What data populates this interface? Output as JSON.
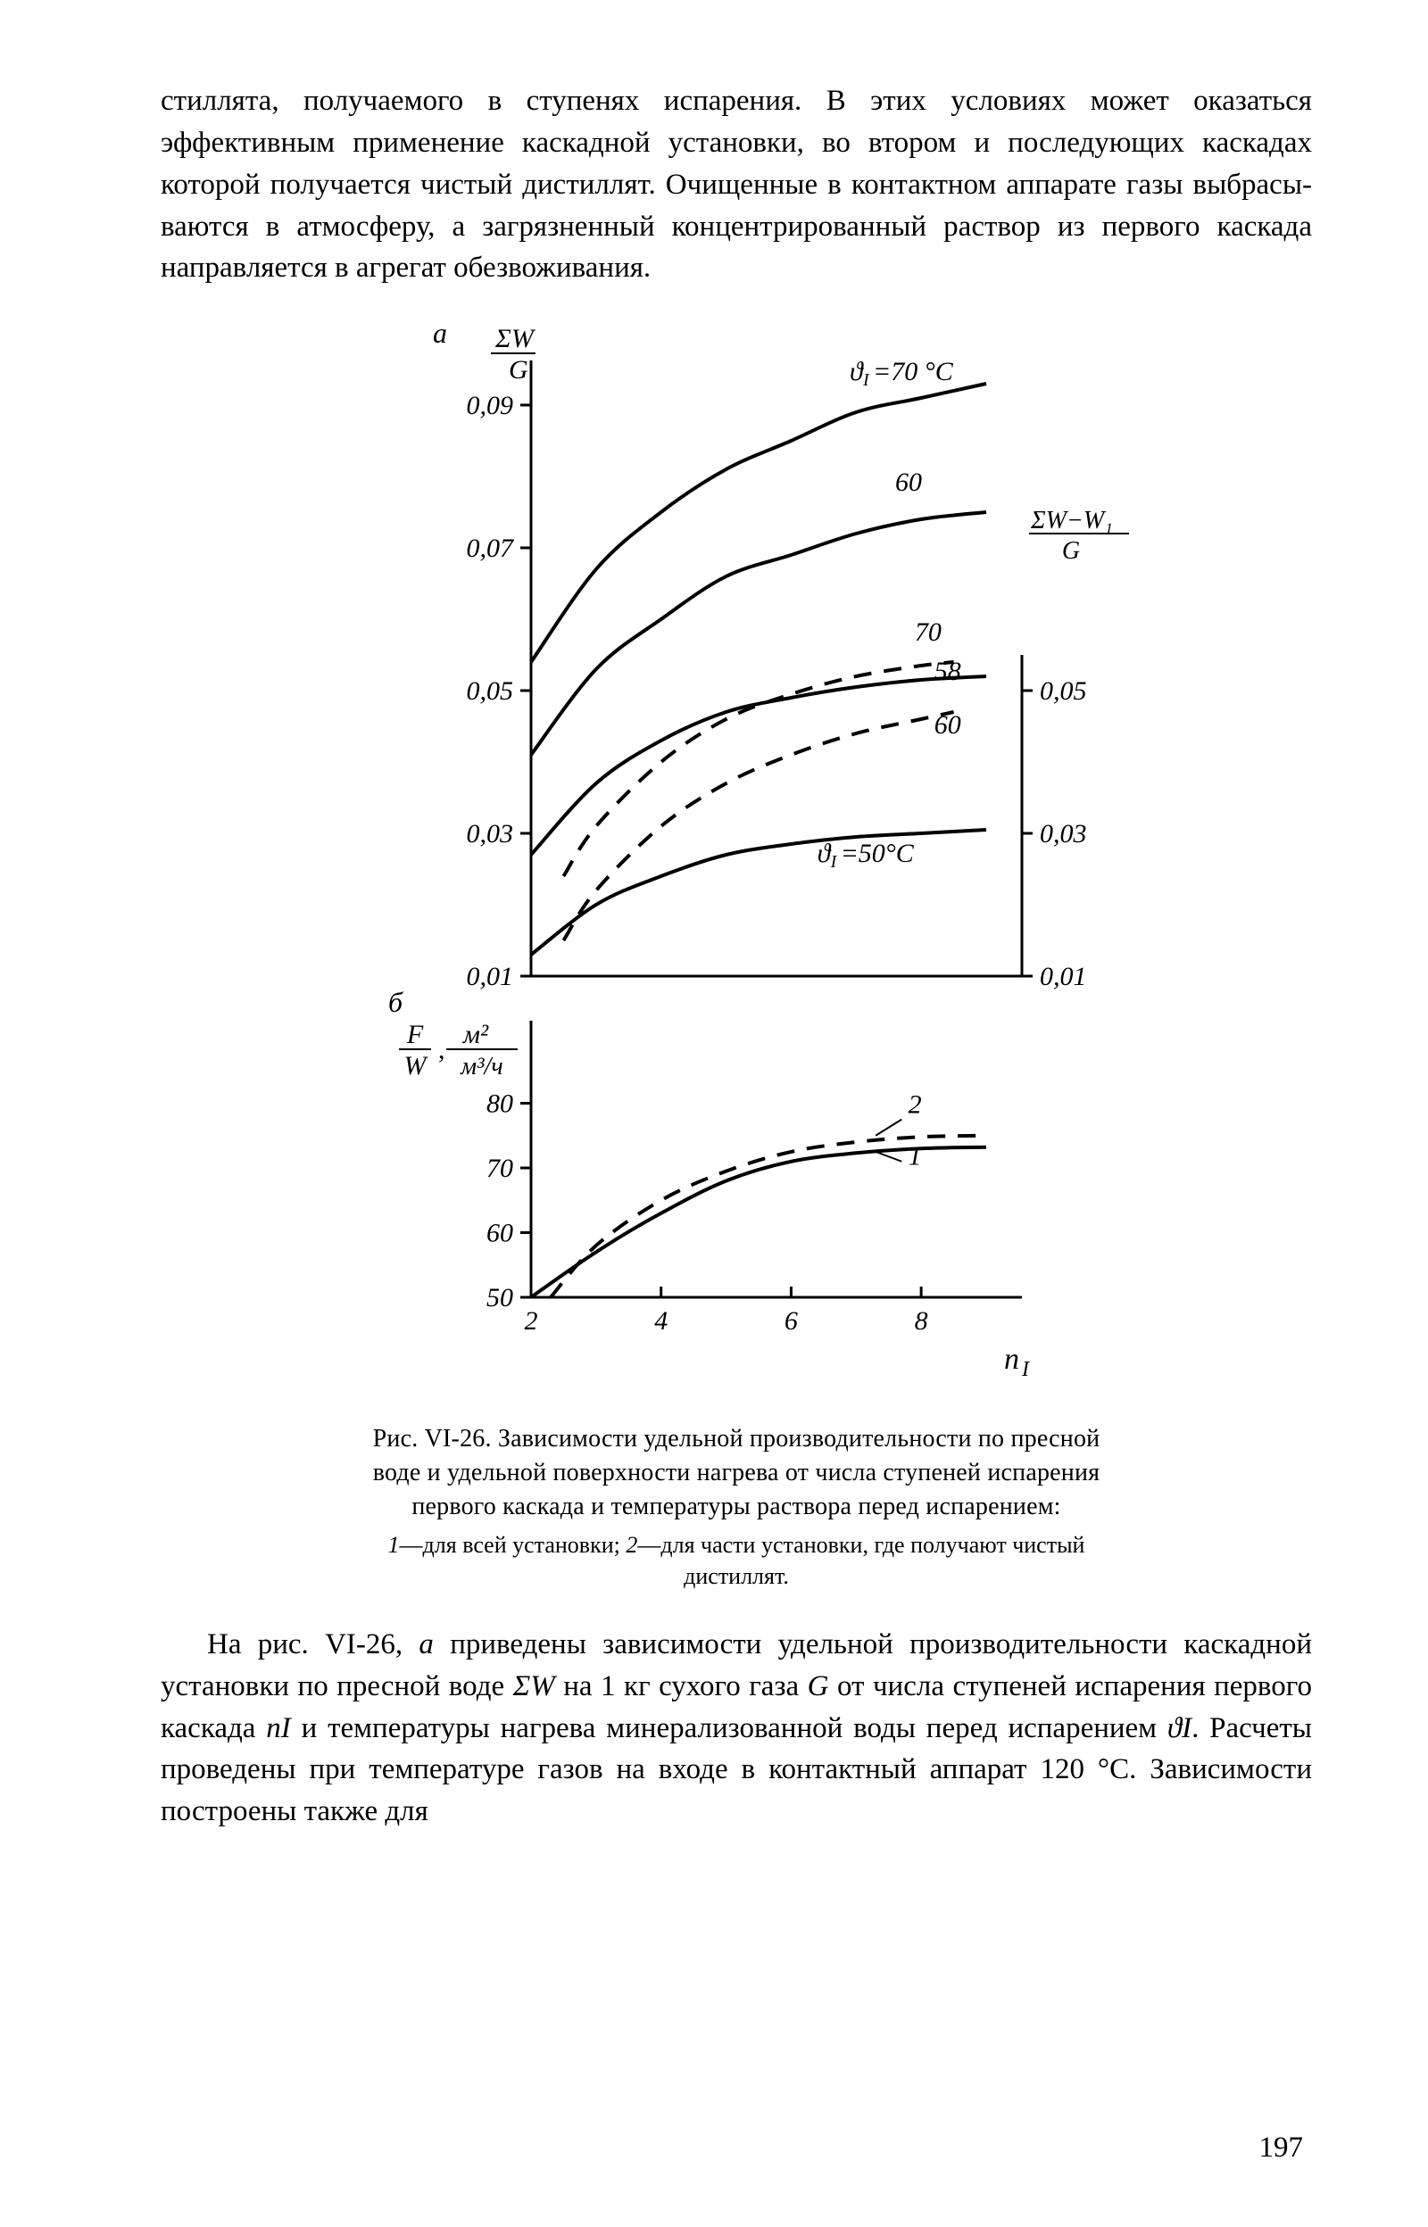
{
  "text": {
    "para1": "стиллята, получаемого в ступенях испарения. В этих условиях может оказаться эффективным применение каскадной установки, во втором и последующих каскадах которой получается чистый дистиллят. Очищенные в контактном аппарате газы выбрасы­ваются в атмосферу, а загрязненный концентрированный рас­твор из первого каскада направляется в агрегат обезвоживания.",
    "caption_main": "Рис. VI-26. Зависимости удельной производитель­ности по пресной воде и удельной поверхности на­грева от числа ступеней испарения первого каскада и температуры раствора перед испарением:",
    "caption_sub_1": "1",
    "caption_sub_1t": "—для всей установки; ",
    "caption_sub_2": "2",
    "caption_sub_2t": "—для части установки, где полу­чают чистый дистиллят.",
    "para2_a": "На рис. VI-26, ",
    "para2_a_it": "а",
    "para2_b": " приведены зависимости удельной произво­дительности каскадной установки по пресной воде ",
    "para2_sum": "ΣW",
    "para2_c": " на 1 кг сухого газа ",
    "para2_G": "G",
    "para2_d": " от числа ступеней испарения первого каскада ",
    "para2_nI": "nI",
    "para2_e": " и температуры нагрева минерализованной воды перед испаре­нием ",
    "para2_theta": "ϑI",
    "para2_f": ". Расчеты проведены при температуре газов на входе в контактный аппарат 120 °С. Зависимости построены также для",
    "pagenum": "197"
  },
  "chart": {
    "colors": {
      "stroke": "#000000",
      "background": "#ffffff"
    },
    "font_family": "Times New Roman, serif",
    "axis_label_fontsize": 30,
    "tick_fontsize": 30,
    "line_width_axis": 3,
    "line_width_series_solid": 4,
    "line_width_series_dash": 4,
    "dash_pattern": "20 14",
    "xlim": [
      2,
      9
    ],
    "panel_a": {
      "letter": "а",
      "y_left_label_top": "ΣW",
      "y_left_label_bot": "G",
      "y_right_label_top": "ΣW−W₁",
      "y_right_label_bot": "G",
      "ylim": [
        0.01,
        0.095
      ],
      "yticks_left": [
        0.01,
        0.03,
        0.05,
        0.07,
        0.09
      ],
      "ytick_labels_left": [
        "0,01",
        "0,03",
        "0,05",
        "0,07",
        "0,09"
      ],
      "yticks_right": [
        0.01,
        0.03,
        0.05
      ],
      "ytick_labels_right": [
        "0,01",
        "0,03",
        "0,05"
      ],
      "series_solid": {
        "curve_labels": [
          "ϑI=70 °С",
          "60",
          "58",
          "ϑI=50°С"
        ],
        "70": [
          [
            2,
            0.054
          ],
          [
            3,
            0.067
          ],
          [
            4,
            0.075
          ],
          [
            5,
            0.081
          ],
          [
            6,
            0.085
          ],
          [
            7,
            0.089
          ],
          [
            8,
            0.091
          ],
          [
            9,
            0.093
          ]
        ],
        "60": [
          [
            2,
            0.041
          ],
          [
            3,
            0.053
          ],
          [
            4,
            0.06
          ],
          [
            5,
            0.066
          ],
          [
            6,
            0.069
          ],
          [
            7,
            0.072
          ],
          [
            8,
            0.074
          ],
          [
            9,
            0.075
          ]
        ],
        "58": [
          [
            2,
            0.027
          ],
          [
            3,
            0.037
          ],
          [
            4,
            0.043
          ],
          [
            5,
            0.047
          ],
          [
            6,
            0.049
          ],
          [
            7,
            0.0505
          ],
          [
            8,
            0.0515
          ],
          [
            9,
            0.052
          ]
        ],
        "50": [
          [
            2,
            0.013
          ],
          [
            3,
            0.02
          ],
          [
            4,
            0.024
          ],
          [
            5,
            0.027
          ],
          [
            6,
            0.0285
          ],
          [
            7,
            0.0295
          ],
          [
            8,
            0.03
          ],
          [
            9,
            0.0305
          ]
        ]
      },
      "series_dash": {
        "curve_labels": [
          "70",
          "60"
        ],
        "70": [
          [
            2.5,
            0.024
          ],
          [
            3,
            0.031
          ],
          [
            4,
            0.04
          ],
          [
            5,
            0.046
          ],
          [
            6,
            0.0495
          ],
          [
            7,
            0.052
          ],
          [
            8,
            0.0535
          ],
          [
            8.5,
            0.054
          ]
        ],
        "60": [
          [
            2.5,
            0.015
          ],
          [
            3,
            0.022
          ],
          [
            4,
            0.031
          ],
          [
            5,
            0.037
          ],
          [
            6,
            0.041
          ],
          [
            7,
            0.044
          ],
          [
            8,
            0.046
          ],
          [
            8.5,
            0.047
          ]
        ]
      }
    },
    "panel_b": {
      "letter": "б",
      "y_label_frac1_top": "F",
      "y_label_frac1_bot": "W",
      "y_label_comma": ",",
      "y_label_frac2_top": "м²",
      "y_label_frac2_bot": "м³/ч",
      "ylim": [
        50,
        90
      ],
      "yticks": [
        50,
        60,
        70,
        80
      ],
      "xticks": [
        2,
        4,
        6,
        8
      ],
      "xlabel": "nI",
      "series_solid_label": "1",
      "series_dash_label": "2",
      "series_solid": [
        [
          2,
          50
        ],
        [
          3,
          57
        ],
        [
          4,
          63
        ],
        [
          5,
          68
        ],
        [
          6,
          71
        ],
        [
          7,
          72.3
        ],
        [
          8,
          73
        ],
        [
          9,
          73.2
        ]
      ],
      "series_dash": [
        [
          2.3,
          50
        ],
        [
          3,
          58
        ],
        [
          4,
          65
        ],
        [
          5,
          69.5
        ],
        [
          6,
          72.5
        ],
        [
          7,
          74
        ],
        [
          8,
          74.8
        ],
        [
          9,
          75
        ]
      ]
    }
  }
}
